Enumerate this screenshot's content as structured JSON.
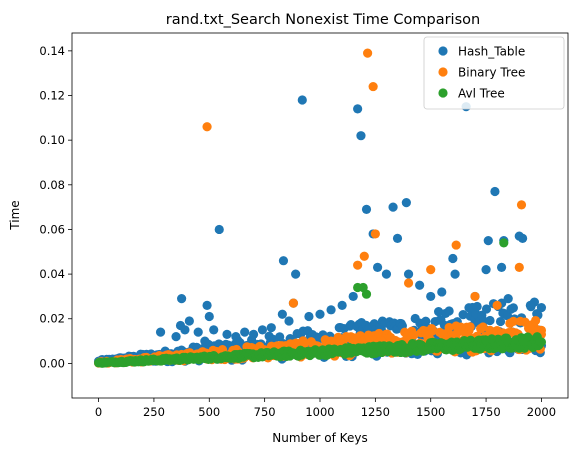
{
  "chart_data": {
    "type": "scatter",
    "title": "rand.txt_Search Nonexist Time Comparison",
    "xlabel": "Number of Keys",
    "ylabel": "Time",
    "xlim": [
      -120,
      2120
    ],
    "ylim": [
      -0.0155,
      0.148
    ],
    "xticks": [
      0,
      250,
      500,
      750,
      1000,
      1250,
      1500,
      1750,
      2000
    ],
    "xtick_labels": [
      "0",
      "250",
      "500",
      "750",
      "1000",
      "1250",
      "1500",
      "1750",
      "2000"
    ],
    "yticks": [
      0.0,
      0.02,
      0.04,
      0.06,
      0.08,
      0.1,
      0.12,
      0.14
    ],
    "ytick_labels": [
      "0.00",
      "0.02",
      "0.04",
      "0.06",
      "0.08",
      "0.10",
      "0.12",
      "0.14"
    ],
    "grid": false,
    "legend_position": "top-right",
    "series": [
      {
        "name": "Hash_Table",
        "color": "#1f77b4",
        "points": [
          [
            25,
            0.001
          ],
          [
            80,
            0.002
          ],
          [
            150,
            0.003
          ],
          [
            200,
            0.004
          ],
          [
            280,
            0.014
          ],
          [
            300,
            0.005
          ],
          [
            350,
            0.012
          ],
          [
            370,
            0.017
          ],
          [
            375,
            0.029
          ],
          [
            390,
            0.015
          ],
          [
            410,
            0.019
          ],
          [
            450,
            0.014
          ],
          [
            480,
            0.01
          ],
          [
            490,
            0.026
          ],
          [
            500,
            0.021
          ],
          [
            520,
            0.015
          ],
          [
            545,
            0.06
          ],
          [
            580,
            0.013
          ],
          [
            620,
            0.012
          ],
          [
            660,
            0.014
          ],
          [
            700,
            0.013
          ],
          [
            740,
            0.015
          ],
          [
            780,
            0.016
          ],
          [
            830,
            0.022
          ],
          [
            835,
            0.046
          ],
          [
            860,
            0.019
          ],
          [
            880,
            0.027
          ],
          [
            890,
            0.04
          ],
          [
            920,
            0.118
          ],
          [
            950,
            0.021
          ],
          [
            1000,
            0.022
          ],
          [
            1050,
            0.024
          ],
          [
            1100,
            0.026
          ],
          [
            1150,
            0.03
          ],
          [
            1170,
            0.114
          ],
          [
            1185,
            0.102
          ],
          [
            1210,
            0.069
          ],
          [
            1240,
            0.058
          ],
          [
            1260,
            0.043
          ],
          [
            1300,
            0.04
          ],
          [
            1330,
            0.07
          ],
          [
            1350,
            0.056
          ],
          [
            1390,
            0.072
          ],
          [
            1400,
            0.04
          ],
          [
            1450,
            0.035
          ],
          [
            1500,
            0.03
          ],
          [
            1550,
            0.032
          ],
          [
            1600,
            0.047
          ],
          [
            1610,
            0.04
          ],
          [
            1660,
            0.115
          ],
          [
            1700,
            0.03
          ],
          [
            1750,
            0.042
          ],
          [
            1760,
            0.055
          ],
          [
            1790,
            0.077
          ],
          [
            1820,
            0.043
          ],
          [
            1830,
            0.055
          ],
          [
            1850,
            0.029
          ],
          [
            1900,
            0.057
          ],
          [
            1915,
            0.056
          ],
          [
            1950,
            0.026
          ],
          [
            2000,
            0.025
          ]
        ]
      },
      {
        "name": "Binary Tree",
        "color": "#ff7f0e",
        "points": [
          [
            490,
            0.106
          ],
          [
            880,
            0.027
          ],
          [
            1170,
            0.044
          ],
          [
            1200,
            0.048
          ],
          [
            1215,
            0.139
          ],
          [
            1240,
            0.124
          ],
          [
            1250,
            0.058
          ],
          [
            1400,
            0.036
          ],
          [
            1500,
            0.042
          ],
          [
            1615,
            0.053
          ],
          [
            1700,
            0.03
          ],
          [
            1800,
            0.026
          ],
          [
            1900,
            0.043
          ],
          [
            1910,
            0.071
          ],
          [
            1950,
            0.016
          ],
          [
            2000,
            0.013
          ]
        ]
      },
      {
        "name": "Avl Tree",
        "color": "#2ca02c",
        "points": [
          [
            1170,
            0.034
          ],
          [
            1195,
            0.034
          ],
          [
            1210,
            0.031
          ],
          [
            1830,
            0.054
          ]
        ]
      }
    ],
    "bands": [
      {
        "series": "Hash_Table",
        "x_start": 0,
        "x_end": 2000,
        "count": 380,
        "lower_start": 0.0,
        "lower_end": 0.0045,
        "upper_start": 0.0015,
        "upper_end": 0.03
      },
      {
        "series": "Binary Tree",
        "x_start": 0,
        "x_end": 2000,
        "count": 380,
        "lower_start": 0.0,
        "lower_end": 0.006,
        "upper_start": 0.0008,
        "upper_end": 0.021
      },
      {
        "series": "Avl Tree",
        "x_start": 0,
        "x_end": 2000,
        "count": 420,
        "lower_start": 0.0,
        "lower_end": 0.007,
        "upper_start": 0.0005,
        "upper_end": 0.0125
      }
    ]
  }
}
